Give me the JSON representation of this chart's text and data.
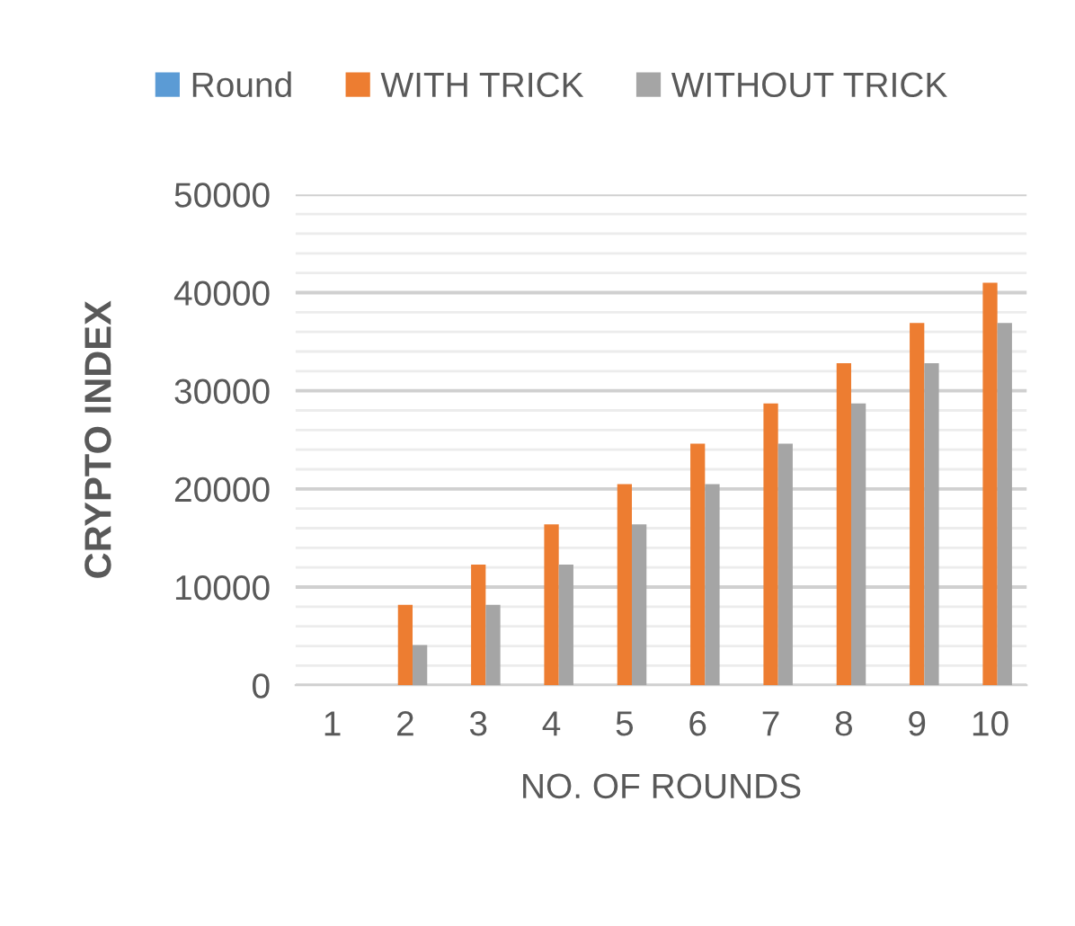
{
  "chart_data": {
    "type": "bar",
    "xlabel": "NO. OF ROUNDS",
    "ylabel": "CRYPTO INDEX",
    "categories": [
      "1",
      "2",
      "3",
      "4",
      "5",
      "6",
      "7",
      "8",
      "9",
      "10"
    ],
    "series": [
      {
        "name": "Round",
        "color": "#5b9bd5",
        "values": [
          null,
          null,
          null,
          null,
          null,
          null,
          null,
          null,
          null,
          null
        ]
      },
      {
        "name": "WITH TRICK",
        "color": "#ed7d31",
        "values": [
          0,
          8200,
          12300,
          16400,
          20500,
          24600,
          28700,
          32800,
          36900,
          41000
        ]
      },
      {
        "name": "WITHOUT TRICK",
        "color": "#a5a5a5",
        "values": [
          0,
          4100,
          8200,
          12300,
          16400,
          20500,
          24600,
          28700,
          32800,
          36900
        ]
      }
    ],
    "ylim": [
      0,
      50000
    ],
    "yticks": [
      0,
      10000,
      20000,
      30000,
      40000,
      50000
    ],
    "grid": "y",
    "legend": "top"
  }
}
